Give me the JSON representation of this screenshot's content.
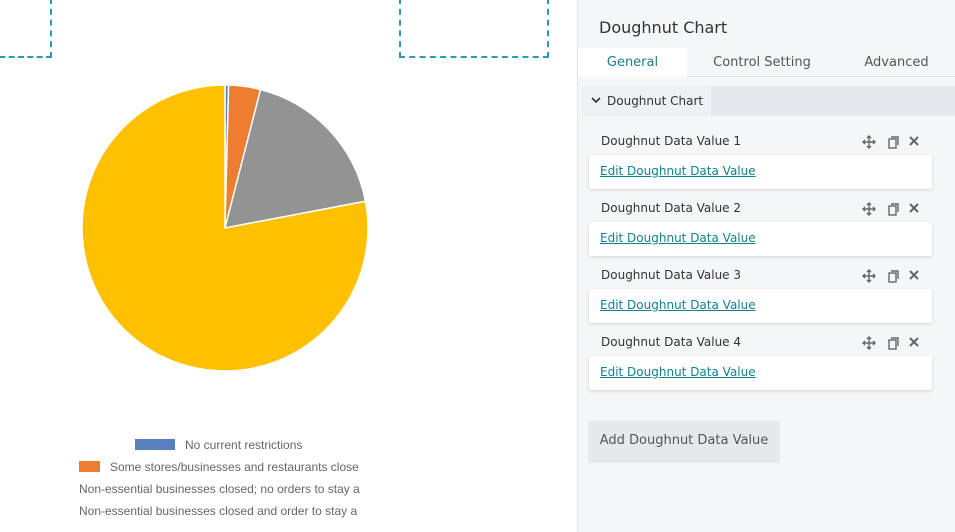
{
  "chart_data": {
    "type": "pie",
    "categories": [
      "No current restrictions",
      "Some stores/businesses and restaurants close",
      "Non-essential businesses closed; no orders to stay a",
      "Non-essential businesses closed and order to stay a"
    ],
    "values": [
      0.4,
      3.6,
      18,
      78
    ],
    "colors": [
      "#5a7fbd",
      "#ed7d31",
      "#939393",
      "#ffc000"
    ]
  },
  "panel": {
    "title": "Doughnut Chart",
    "tabs": [
      "General",
      "Control Setting",
      "Advanced"
    ],
    "section": "Doughnut Chart",
    "items": [
      {
        "title": "Doughnut Data Value 1",
        "link": "Edit Doughnut Data Value"
      },
      {
        "title": "Doughnut Data Value 2",
        "link": "Edit Doughnut Data Value"
      },
      {
        "title": "Doughnut Data Value 3",
        "link": "Edit Doughnut Data Value"
      },
      {
        "title": "Doughnut Data Value 4",
        "link": "Edit Doughnut Data Value"
      }
    ],
    "button": "Add Doughnut Data Value"
  }
}
